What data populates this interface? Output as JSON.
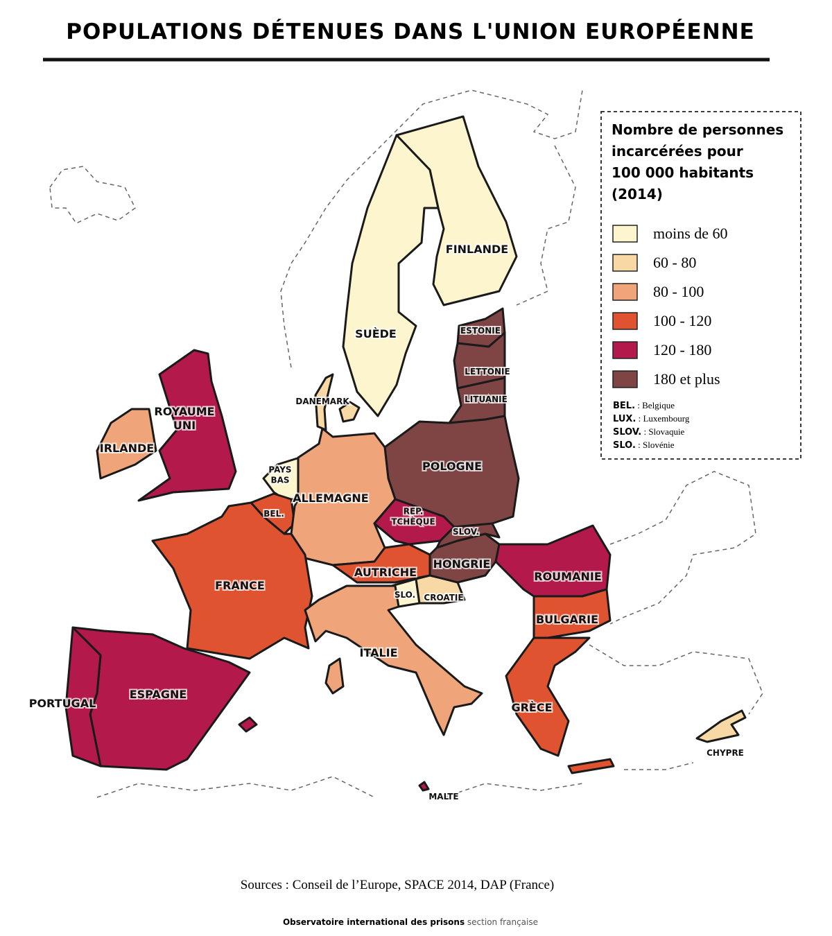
{
  "title": "POPULATIONS DÉTENUES DANS L'UNION EUROPÉENNE",
  "legend": {
    "title": [
      "Nombre de personnes",
      "incarcérées pour",
      "100 000 habitants",
      "(2014)"
    ],
    "items": [
      {
        "label": "moins de 60",
        "color": "#fdf5cd"
      },
      {
        "label": "60 - 80",
        "color": "#f8d9a6"
      },
      {
        "label": "80 - 100",
        "color": "#efa479"
      },
      {
        "label": "100 - 120",
        "color": "#df5330"
      },
      {
        "label": "120 - 180",
        "color": "#b3194a"
      },
      {
        "label": "180 et plus",
        "color": "#7e4544"
      }
    ],
    "abbreviations": [
      {
        "abbr": "BEL.",
        "text": ": Belgique"
      },
      {
        "abbr": "LUX.",
        "text": ": Luxembourg"
      },
      {
        "abbr": "SLOV.",
        "text": ": Slovaquie"
      },
      {
        "abbr": "SLO.",
        "text": ": Slovénie"
      }
    ]
  },
  "countries": [
    {
      "label": [
        "FINLANDE"
      ],
      "color": "#fdf5cd"
    },
    {
      "label": [
        "SUÈDE"
      ],
      "color": "#fdf5cd"
    },
    {
      "label": [
        "ESTONIE"
      ],
      "color": "#7e4544"
    },
    {
      "label": [
        "LETTONIE"
      ],
      "color": "#7e4544"
    },
    {
      "label": [
        "LITUANIE"
      ],
      "color": "#7e4544"
    },
    {
      "label": [
        "POLOGNE"
      ],
      "color": "#7e4544"
    },
    {
      "label": [
        "DANEMARK"
      ],
      "color": "#f8d9a6"
    },
    {
      "label": [
        "ROYAUME",
        "UNI"
      ],
      "color": "#b3194a"
    },
    {
      "label": [
        "IRLANDE"
      ],
      "color": "#efa479"
    },
    {
      "label": [
        "PAYS",
        "BAS"
      ],
      "color": "#fdf5cd"
    },
    {
      "label": [
        "BEL."
      ],
      "color": "#df5330"
    },
    {
      "label": [
        "ALLEMAGNE"
      ],
      "color": "#efa479"
    },
    {
      "label": [
        "REP.",
        "TCHÈQUE"
      ],
      "color": "#b3194a"
    },
    {
      "label": [
        "SLOV."
      ],
      "color": "#7e4544"
    },
    {
      "label": [
        "HONGRIE"
      ],
      "color": "#7e4544"
    },
    {
      "label": [
        "ROUMANIE"
      ],
      "color": "#b3194a"
    },
    {
      "label": [
        "AUTRICHE"
      ],
      "color": "#df5330"
    },
    {
      "label": [
        "SLO."
      ],
      "color": "#fdf5cd"
    },
    {
      "label": [
        "CROATIE"
      ],
      "color": "#f8d9a6"
    },
    {
      "label": [
        "FRANCE"
      ],
      "color": "#df5330"
    },
    {
      "label": [
        "BULGARIE"
      ],
      "color": "#df5330"
    },
    {
      "label": [
        "ITALIE"
      ],
      "color": "#efa479"
    },
    {
      "label": [
        "GRÈCE"
      ],
      "color": "#df5330"
    },
    {
      "label": [
        "ESPAGNE"
      ],
      "color": "#b3194a"
    },
    {
      "label": [
        "PORTUGAL"
      ],
      "color": "#b3194a"
    },
    {
      "label": [
        "CHYPRE"
      ],
      "color": "#f8d9a6"
    },
    {
      "label": [
        "MALTE"
      ],
      "color": "#b3194a"
    }
  ],
  "sources": "Sources : Conseil de l’Europe, SPACE 2014, DAP (France)",
  "footer": {
    "org": "Observatoire international des prisons",
    "section": "section française"
  }
}
